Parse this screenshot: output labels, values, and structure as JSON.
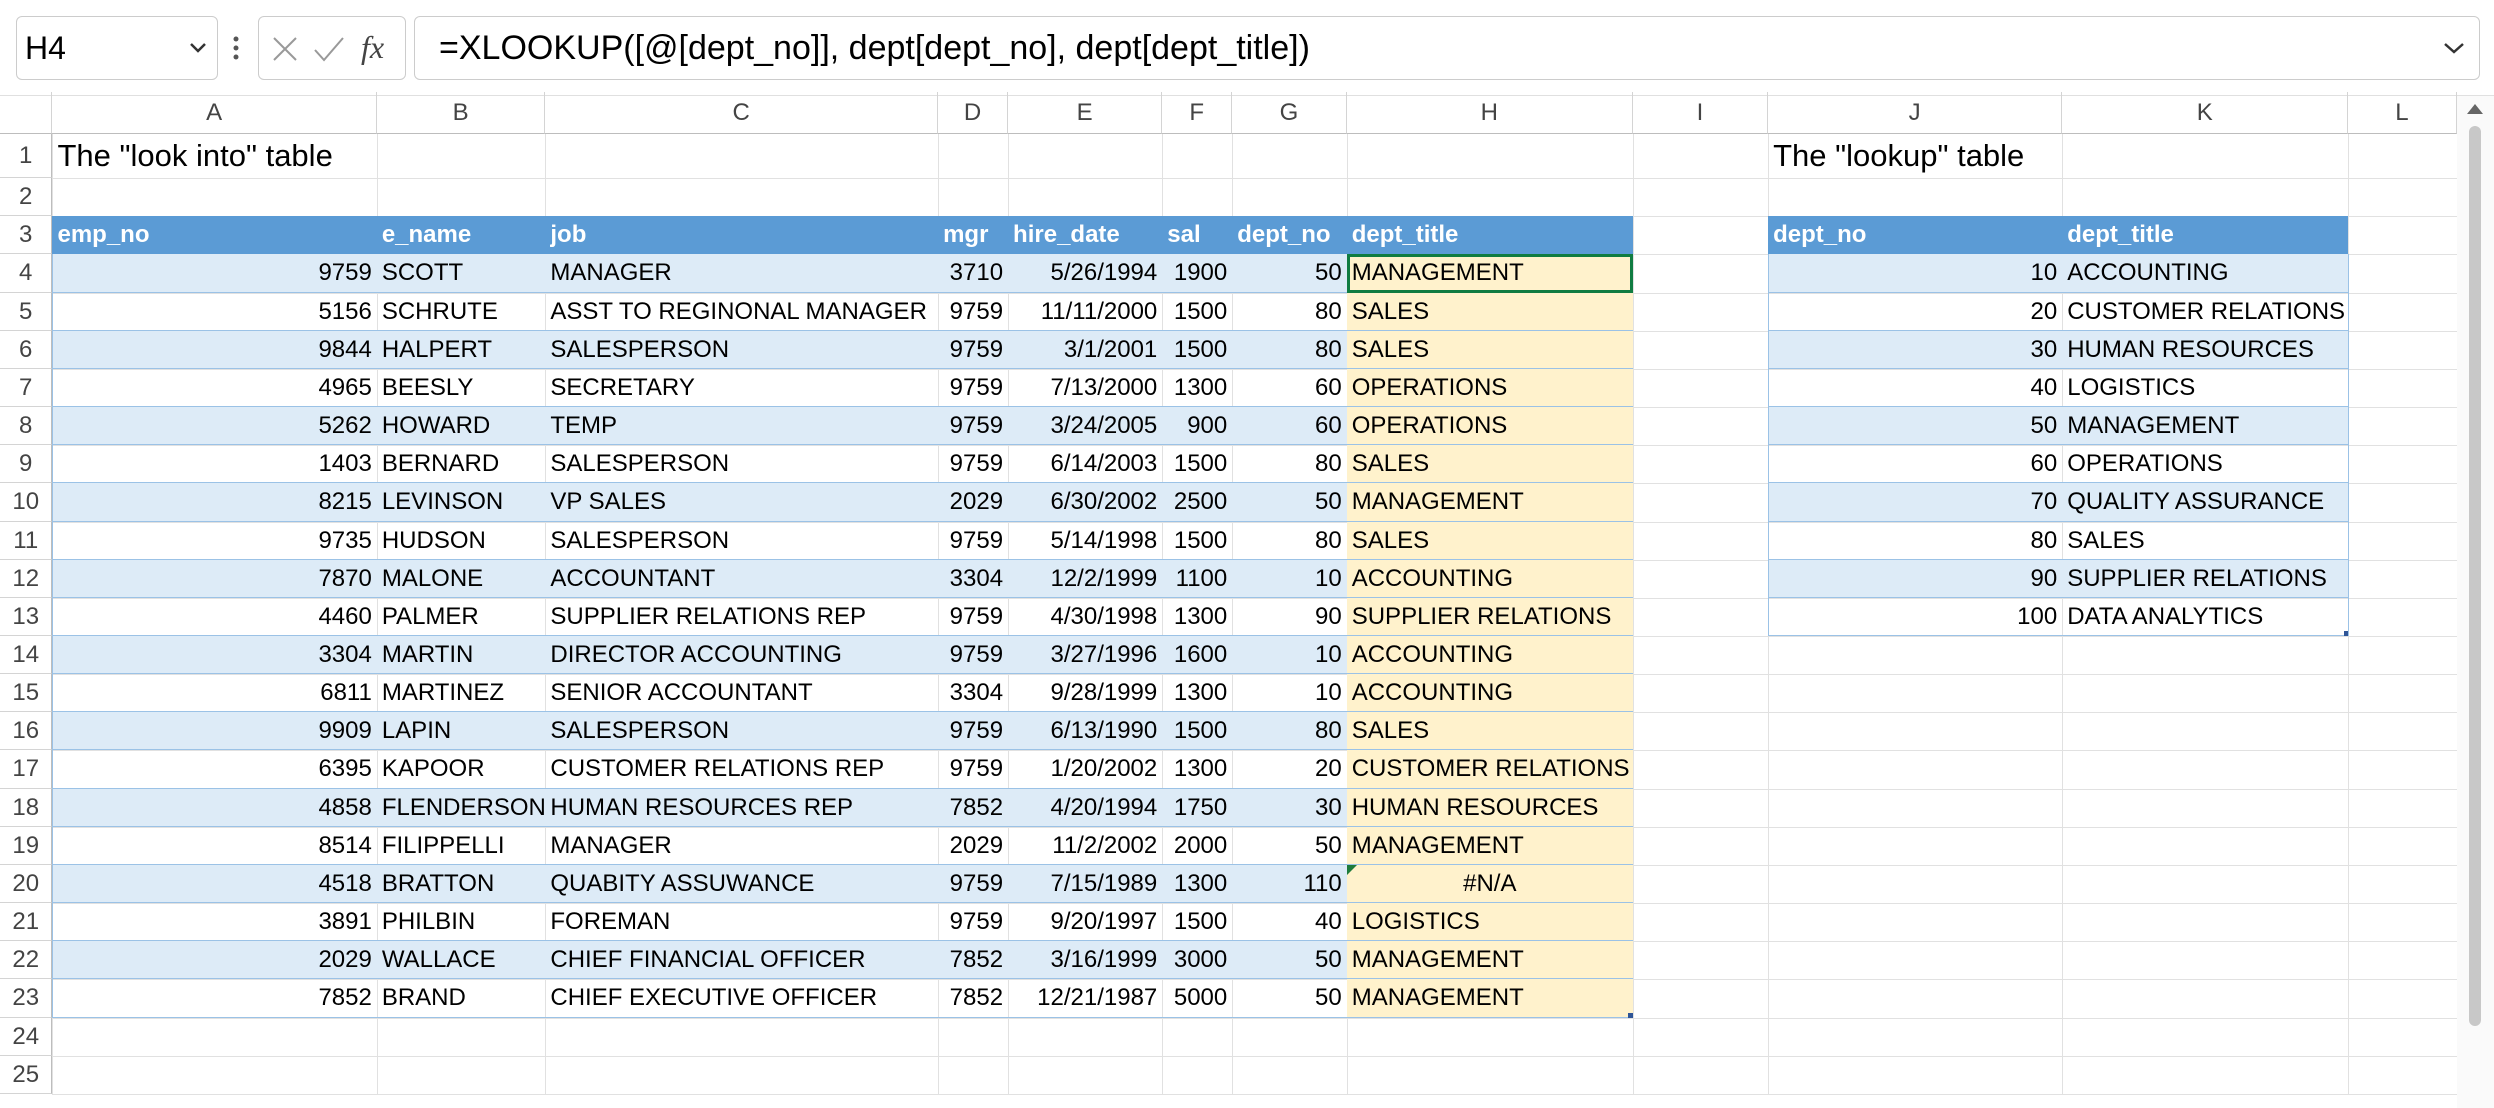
{
  "name_box": "H4",
  "function_label": "fx",
  "formula": "=XLOOKUP([@[dept_no]], dept[dept_no], dept[dept_title])",
  "columns": [
    "A",
    "B",
    "C",
    "D",
    "E",
    "F",
    "G",
    "H",
    "I",
    "J",
    "K",
    "L"
  ],
  "rows": [
    1,
    2,
    3,
    4,
    5,
    6,
    7,
    8,
    9,
    10,
    11,
    12,
    13,
    14,
    15,
    16,
    17,
    18,
    19,
    20,
    21,
    22,
    23,
    24,
    25
  ],
  "titles": {
    "left": "The \"look into\" table",
    "right": "The \"lookup\" table"
  },
  "employees": {
    "headers": [
      "emp_no",
      "e_name",
      "job",
      "mgr",
      "hire_date",
      "sal",
      "dept_no",
      "dept_title"
    ],
    "rows": [
      [
        9759,
        "SCOTT",
        "MANAGER",
        3710,
        "5/26/1994",
        1900,
        50,
        "MANAGEMENT"
      ],
      [
        5156,
        "SCHRUTE",
        "ASST TO REGINONAL MANAGER",
        9759,
        "11/11/2000",
        1500,
        80,
        "SALES"
      ],
      [
        9844,
        "HALPERT",
        "SALESPERSON",
        9759,
        "3/1/2001",
        1500,
        80,
        "SALES"
      ],
      [
        4965,
        "BEESLY",
        "SECRETARY",
        9759,
        "7/13/2000",
        1300,
        60,
        "OPERATIONS"
      ],
      [
        5262,
        "HOWARD",
        "TEMP",
        9759,
        "3/24/2005",
        900,
        60,
        "OPERATIONS"
      ],
      [
        1403,
        "BERNARD",
        "SALESPERSON",
        9759,
        "6/14/2003",
        1500,
        80,
        "SALES"
      ],
      [
        8215,
        "LEVINSON",
        "VP SALES",
        2029,
        "6/30/2002",
        2500,
        50,
        "MANAGEMENT"
      ],
      [
        9735,
        "HUDSON",
        "SALESPERSON",
        9759,
        "5/14/1998",
        1500,
        80,
        "SALES"
      ],
      [
        7870,
        "MALONE",
        "ACCOUNTANT",
        3304,
        "12/2/1999",
        1100,
        10,
        "ACCOUNTING"
      ],
      [
        4460,
        "PALMER",
        "SUPPLIER RELATIONS REP",
        9759,
        "4/30/1998",
        1300,
        90,
        "SUPPLIER RELATIONS"
      ],
      [
        3304,
        "MARTIN",
        "DIRECTOR ACCOUNTING",
        9759,
        "3/27/1996",
        1600,
        10,
        "ACCOUNTING"
      ],
      [
        6811,
        "MARTINEZ",
        "SENIOR ACCOUNTANT",
        3304,
        "9/28/1999",
        1300,
        10,
        "ACCOUNTING"
      ],
      [
        9909,
        "LAPIN",
        "SALESPERSON",
        9759,
        "6/13/1990",
        1500,
        80,
        "SALES"
      ],
      [
        6395,
        "KAPOOR",
        "CUSTOMER RELATIONS REP",
        9759,
        "1/20/2002",
        1300,
        20,
        "CUSTOMER RELATIONS"
      ],
      [
        4858,
        "FLENDERSON",
        "HUMAN RESOURCES REP",
        7852,
        "4/20/1994",
        1750,
        30,
        "HUMAN RESOURCES"
      ],
      [
        8514,
        "FILIPPELLI",
        "MANAGER",
        2029,
        "11/2/2002",
        2000,
        50,
        "MANAGEMENT"
      ],
      [
        4518,
        "BRATTON",
        "QUABITY ASSUWANCE",
        9759,
        "7/15/1989",
        1300,
        110,
        "#N/A"
      ],
      [
        3891,
        "PHILBIN",
        "FOREMAN",
        9759,
        "9/20/1997",
        1500,
        40,
        "LOGISTICS"
      ],
      [
        2029,
        "WALLACE",
        "CHIEF FINANCIAL OFFICER",
        7852,
        "3/16/1999",
        3000,
        50,
        "MANAGEMENT"
      ],
      [
        7852,
        "BRAND",
        "CHIEF EXECUTIVE OFFICER",
        7852,
        "12/21/1987",
        5000,
        50,
        "MANAGEMENT"
      ]
    ]
  },
  "departments": {
    "headers": [
      "dept_no",
      "dept_title"
    ],
    "rows": [
      [
        10,
        "ACCOUNTING"
      ],
      [
        20,
        "CUSTOMER RELATIONS"
      ],
      [
        30,
        "HUMAN RESOURCES"
      ],
      [
        40,
        "LOGISTICS"
      ],
      [
        50,
        "MANAGEMENT"
      ],
      [
        60,
        "OPERATIONS"
      ],
      [
        70,
        "QUALITY ASSURANCE"
      ],
      [
        80,
        "SALES"
      ],
      [
        90,
        "SUPPLIER RELATIONS"
      ],
      [
        100,
        "DATA ANALYTICS"
      ]
    ]
  }
}
